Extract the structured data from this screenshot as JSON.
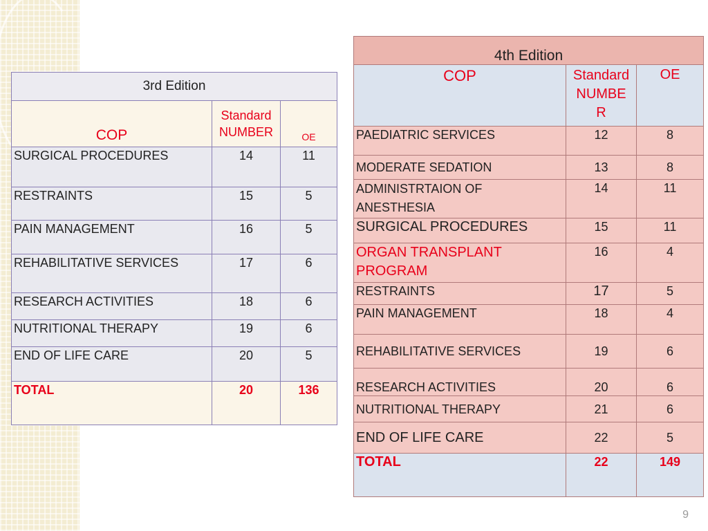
{
  "third_edition": {
    "title": "3rd Edition",
    "col_cop": "COP",
    "col_standard_1": "Standard",
    "col_standard_2": "NUMBER",
    "col_oe": "OE",
    "rows": [
      {
        "name": "SURGICAL PROCEDURES",
        "number": "14",
        "oe": "11"
      },
      {
        "name": "RESTRAINTS",
        "number": "15",
        "oe": "5"
      },
      {
        "name": "PAIN MANAGEMENT",
        "number": "16",
        "oe": "5"
      },
      {
        "name": "REHABILITATIVE SERVICES",
        "number": "17",
        "oe": "6"
      },
      {
        "name": "RESEARCH ACTIVITIES",
        "number": "18",
        "oe": "6"
      },
      {
        "name": "NUTRITIONAL THERAPY",
        "number": "19",
        "oe": "6"
      },
      {
        "name": "END OF LIFE CARE",
        "number": "20",
        "oe": "5"
      }
    ],
    "total": {
      "label": "TOTAL",
      "number": "20",
      "oe": "136"
    }
  },
  "fourth_edition": {
    "title": "4th Edition",
    "col_cop": "COP",
    "col_standard_1": "Standard",
    "col_standard_2": "NUMBE",
    "col_standard_3": "R",
    "col_oe": "OE",
    "rows": [
      {
        "name": "PAEDIATRIC SERVICES",
        "number": "12",
        "oe": "8"
      },
      {
        "name": "MODERATE SEDATION",
        "number": "13",
        "oe": "8"
      },
      {
        "name": "ADMINISTRTAION OF ANESTHESIA",
        "number": "14",
        "oe": "11"
      },
      {
        "name": "SURGICAL PROCEDURES",
        "number": "15",
        "oe": "11"
      },
      {
        "name": "ORGAN TRANSPLANT PROGRAM",
        "number": "16",
        "oe": "4"
      },
      {
        "name": "RESTRAINTS",
        "number": "17",
        "oe": "5"
      },
      {
        "name": "PAIN MANAGEMENT",
        "number": "18",
        "oe": "4"
      },
      {
        "name": "REHABILITATIVE SERVICES",
        "number": "19",
        "oe": "6"
      },
      {
        "name": "RESEARCH ACTIVITIES",
        "number": "20",
        "oe": "6"
      },
      {
        "name": "NUTRITIONAL THERAPY",
        "number": "21",
        "oe": "6"
      },
      {
        "name": "END OF LIFE CARE",
        "number": "22",
        "oe": "5"
      }
    ],
    "total": {
      "label": "TOTAL",
      "number": "22",
      "oe": "149"
    }
  },
  "page_number": "9"
}
